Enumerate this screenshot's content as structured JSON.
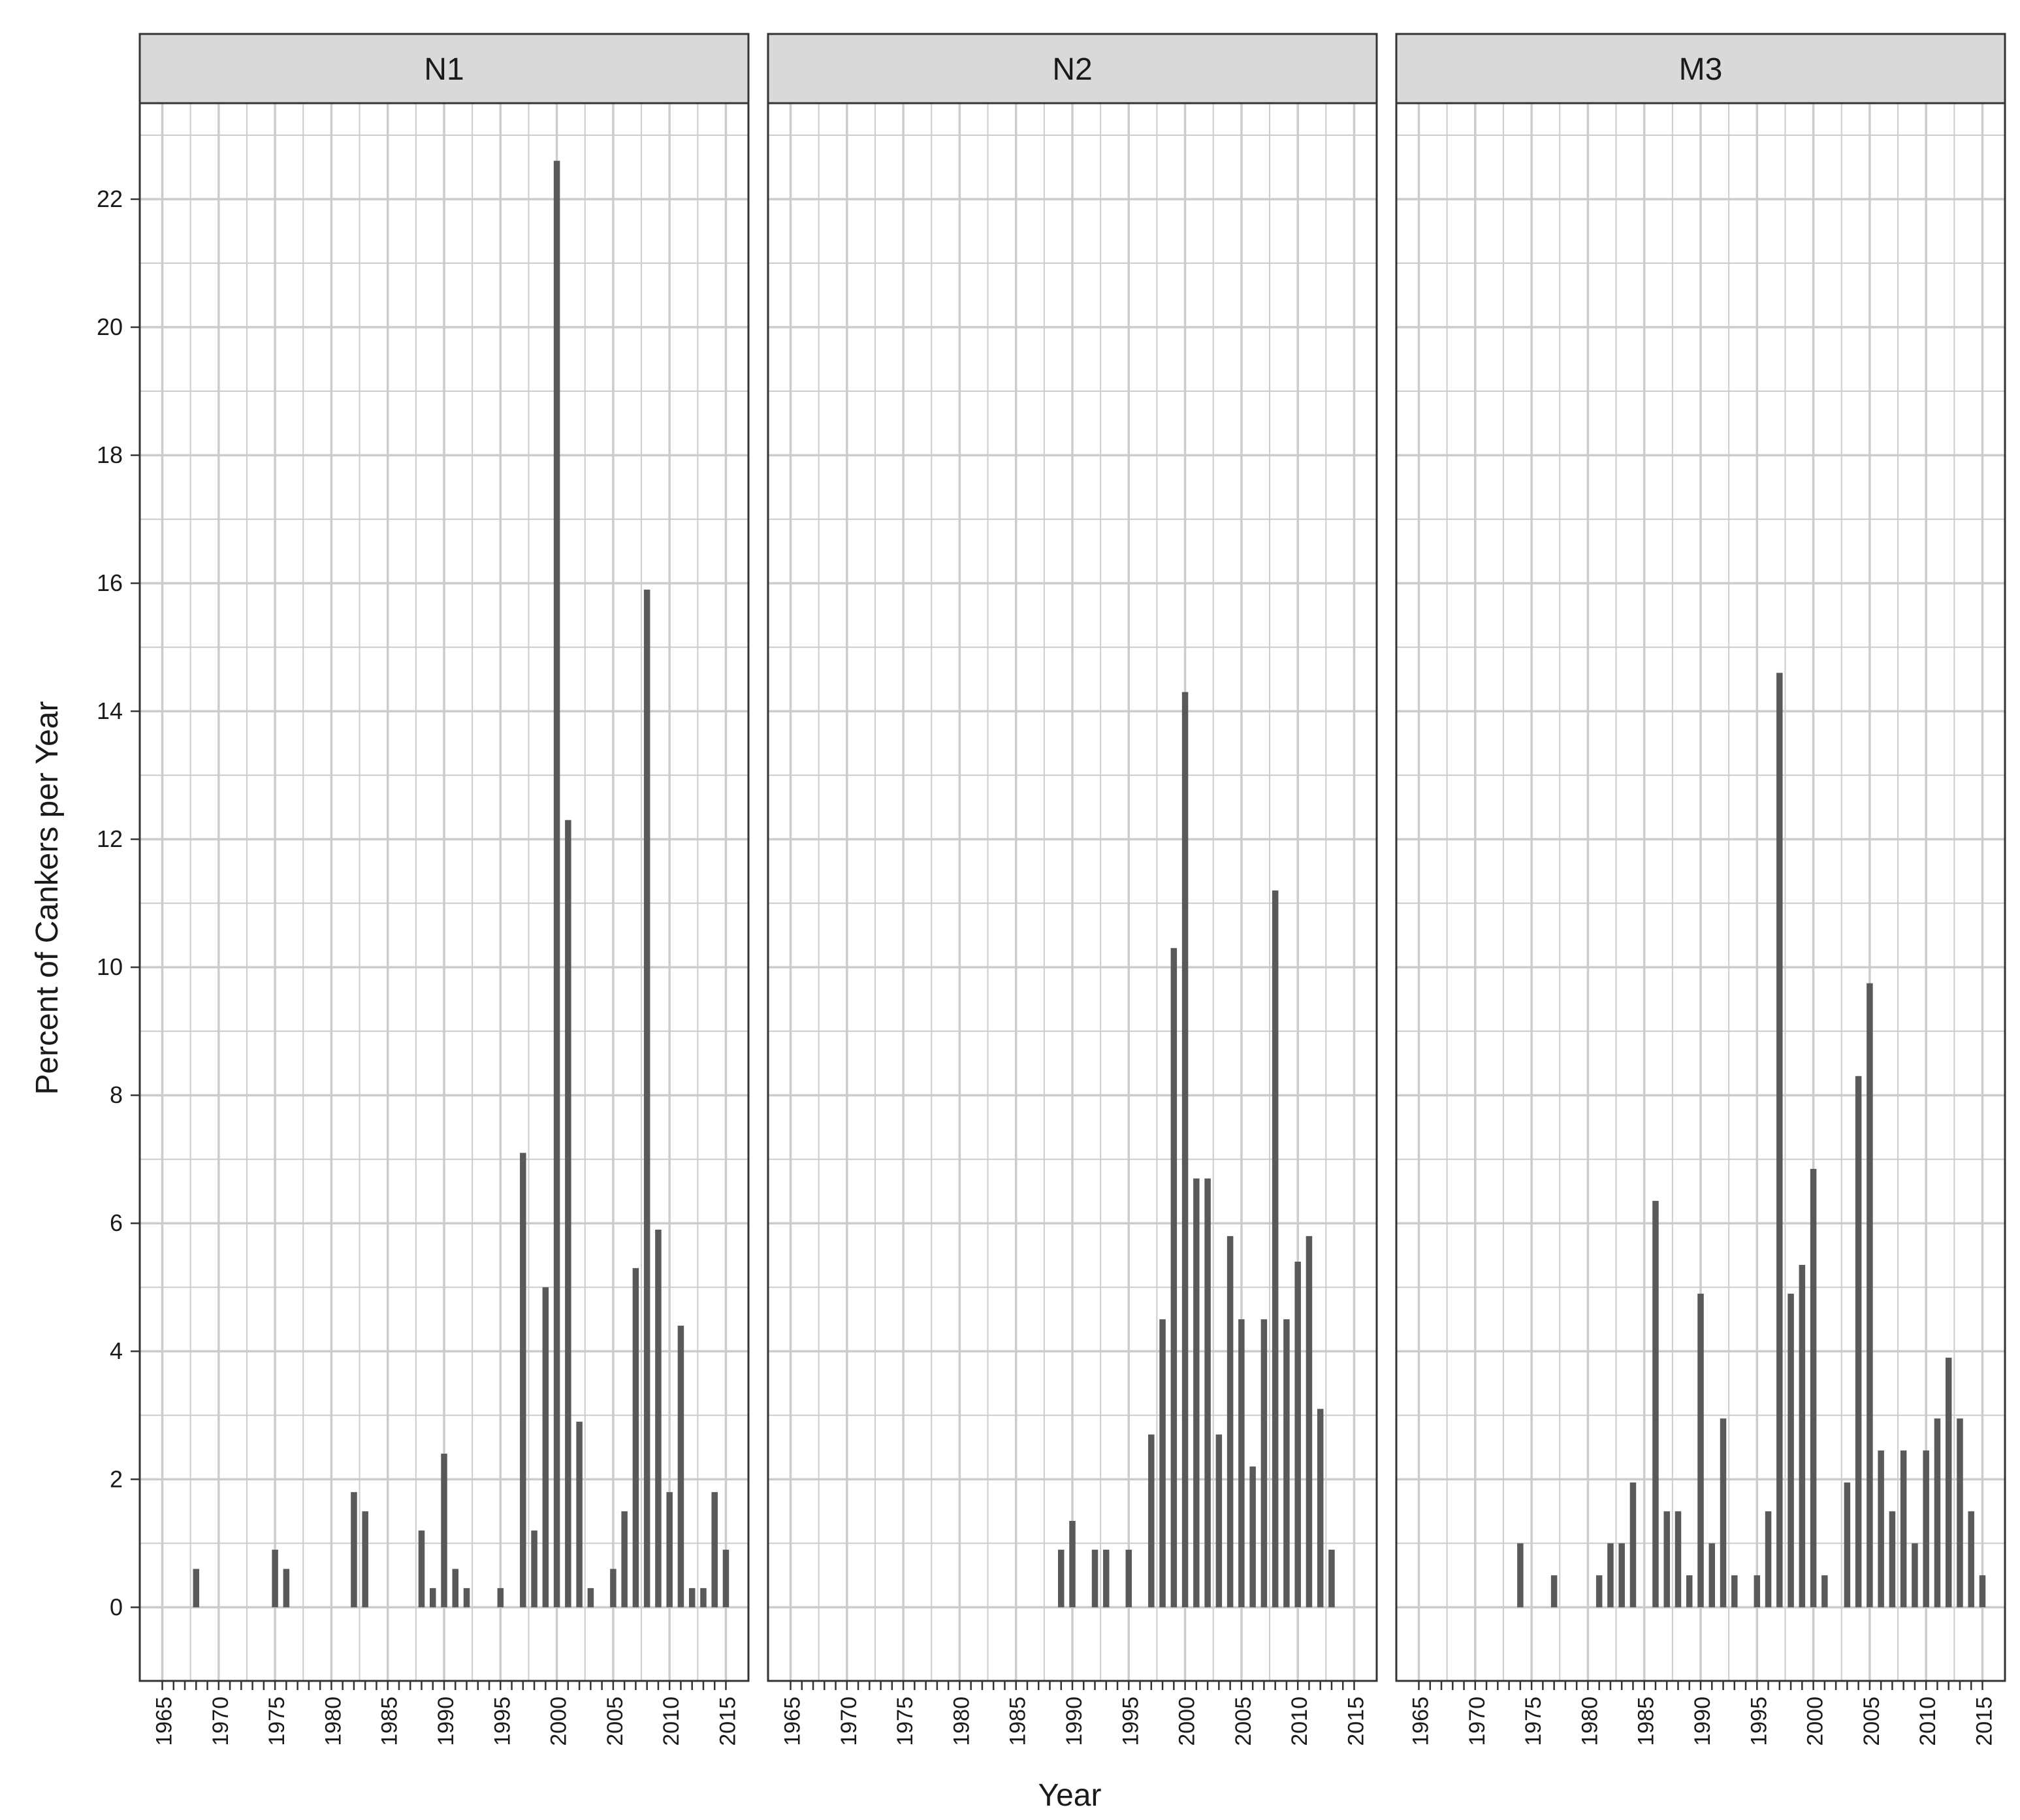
{
  "chart_data": {
    "type": "bar",
    "xlabel": "Year",
    "ylabel": "Percent of Cankers per Year",
    "xlim": [
      1963,
      2017
    ],
    "ylim": [
      -1.15,
      23.5
    ],
    "x_ticks": [
      1965,
      1970,
      1975,
      1980,
      1985,
      1990,
      1995,
      2000,
      2005,
      2010,
      2015
    ],
    "y_ticks": [
      0,
      2,
      4,
      6,
      8,
      10,
      12,
      14,
      16,
      18,
      20,
      22
    ],
    "grid": true,
    "panels": [
      {
        "name": "N1",
        "bars": [
          {
            "x": 1968,
            "y": 0.6
          },
          {
            "x": 1975,
            "y": 0.9
          },
          {
            "x": 1976,
            "y": 0.6
          },
          {
            "x": 1982,
            "y": 1.8
          },
          {
            "x": 1983,
            "y": 1.5
          },
          {
            "x": 1988,
            "y": 1.2
          },
          {
            "x": 1989,
            "y": 0.3
          },
          {
            "x": 1990,
            "y": 2.4
          },
          {
            "x": 1991,
            "y": 0.6
          },
          {
            "x": 1992,
            "y": 0.3
          },
          {
            "x": 1995,
            "y": 0.3
          },
          {
            "x": 1997,
            "y": 7.1
          },
          {
            "x": 1998,
            "y": 1.2
          },
          {
            "x": 1999,
            "y": 5.0
          },
          {
            "x": 2000,
            "y": 22.6
          },
          {
            "x": 2001,
            "y": 12.3
          },
          {
            "x": 2002,
            "y": 2.9
          },
          {
            "x": 2003,
            "y": 0.3
          },
          {
            "x": 2005,
            "y": 0.6
          },
          {
            "x": 2006,
            "y": 1.5
          },
          {
            "x": 2007,
            "y": 5.3
          },
          {
            "x": 2008,
            "y": 15.9
          },
          {
            "x": 2009,
            "y": 5.9
          },
          {
            "x": 2010,
            "y": 1.8
          },
          {
            "x": 2011,
            "y": 4.4
          },
          {
            "x": 2012,
            "y": 0.3
          },
          {
            "x": 2013,
            "y": 0.3
          },
          {
            "x": 2014,
            "y": 1.8
          },
          {
            "x": 2015,
            "y": 0.9
          }
        ]
      },
      {
        "name": "N2",
        "bars": [
          {
            "x": 1989,
            "y": 0.9
          },
          {
            "x": 1990,
            "y": 1.35
          },
          {
            "x": 1992,
            "y": 0.9
          },
          {
            "x": 1993,
            "y": 0.9
          },
          {
            "x": 1995,
            "y": 0.9
          },
          {
            "x": 1997,
            "y": 2.7
          },
          {
            "x": 1998,
            "y": 4.5
          },
          {
            "x": 1999,
            "y": 10.3
          },
          {
            "x": 2000,
            "y": 14.3
          },
          {
            "x": 2001,
            "y": 6.7
          },
          {
            "x": 2002,
            "y": 6.7
          },
          {
            "x": 2003,
            "y": 2.7
          },
          {
            "x": 2004,
            "y": 5.8
          },
          {
            "x": 2005,
            "y": 4.5
          },
          {
            "x": 2006,
            "y": 2.2
          },
          {
            "x": 2007,
            "y": 4.5
          },
          {
            "x": 2008,
            "y": 11.2
          },
          {
            "x": 2009,
            "y": 4.5
          },
          {
            "x": 2010,
            "y": 5.4
          },
          {
            "x": 2011,
            "y": 5.8
          },
          {
            "x": 2012,
            "y": 3.1
          },
          {
            "x": 2013,
            "y": 0.9
          }
        ]
      },
      {
        "name": "M3",
        "bars": [
          {
            "x": 1974,
            "y": 1.0
          },
          {
            "x": 1977,
            "y": 0.5
          },
          {
            "x": 1981,
            "y": 0.5
          },
          {
            "x": 1982,
            "y": 1.0
          },
          {
            "x": 1983,
            "y": 1.0
          },
          {
            "x": 1984,
            "y": 1.95
          },
          {
            "x": 1986,
            "y": 6.35
          },
          {
            "x": 1987,
            "y": 1.5
          },
          {
            "x": 1988,
            "y": 1.5
          },
          {
            "x": 1989,
            "y": 0.5
          },
          {
            "x": 1990,
            "y": 4.9
          },
          {
            "x": 1991,
            "y": 1.0
          },
          {
            "x": 1992,
            "y": 2.95
          },
          {
            "x": 1993,
            "y": 0.5
          },
          {
            "x": 1995,
            "y": 0.5
          },
          {
            "x": 1996,
            "y": 1.5
          },
          {
            "x": 1997,
            "y": 14.6
          },
          {
            "x": 1998,
            "y": 4.9
          },
          {
            "x": 1999,
            "y": 5.35
          },
          {
            "x": 2000,
            "y": 6.85
          },
          {
            "x": 2001,
            "y": 0.5
          },
          {
            "x": 2003,
            "y": 1.95
          },
          {
            "x": 2004,
            "y": 8.3
          },
          {
            "x": 2005,
            "y": 9.75
          },
          {
            "x": 2006,
            "y": 2.45
          },
          {
            "x": 2007,
            "y": 1.5
          },
          {
            "x": 2008,
            "y": 2.45
          },
          {
            "x": 2009,
            "y": 1.0
          },
          {
            "x": 2010,
            "y": 2.45
          },
          {
            "x": 2011,
            "y": 2.95
          },
          {
            "x": 2012,
            "y": 3.9
          },
          {
            "x": 2013,
            "y": 2.95
          },
          {
            "x": 2014,
            "y": 1.5
          },
          {
            "x": 2015,
            "y": 0.5
          }
        ]
      }
    ],
    "colors": {
      "bar": "#595959",
      "grid": "#cccccc",
      "strip_fill": "#d9d9d9",
      "border": "#333333",
      "background": "#ffffff"
    }
  }
}
